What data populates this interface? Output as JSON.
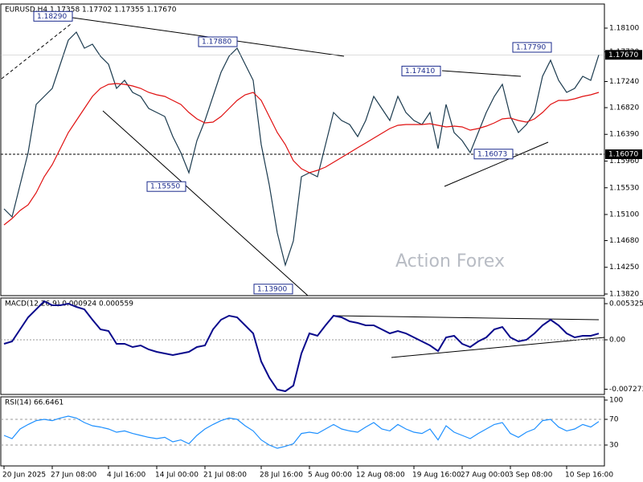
{
  "chart_data": [
    {
      "type": "line",
      "title": "EURUSD,H4  1.17358 1.17702 1.17355 1.17670",
      "categories": [
        "20 Jun 2025",
        null,
        null,
        null,
        null,
        null,
        "27 Jun 08:00",
        null,
        null,
        null,
        null,
        null,
        null,
        "4 Jul 16:00",
        null,
        null,
        null,
        null,
        null,
        "14 Jul 00:00",
        null,
        null,
        null,
        null,
        null,
        "21 Jul 08:00",
        null,
        null,
        null,
        null,
        null,
        null,
        "28 Jul 16:00",
        null,
        null,
        null,
        null,
        null,
        "5 Aug 00:00",
        null,
        null,
        null,
        null,
        null,
        "12 Aug 08:00",
        null,
        null,
        null,
        null,
        null,
        null,
        "19 Aug 16:00",
        null,
        null,
        null,
        null,
        null,
        "27 Aug 00:00",
        null,
        null,
        null,
        null,
        null,
        "3 Sep 08:00",
        null,
        null,
        null,
        null,
        null,
        null,
        "10 Sep 16:00",
        null,
        null,
        null,
        null
      ],
      "series": [
        {
          "color": "#1c3b4f",
          "values": [
            1.15191,
            1.15061,
            1.15579,
            1.16096,
            1.16872,
            1.17001,
            1.1713,
            1.17518,
            1.17906,
            1.18035,
            1.17777,
            1.17841,
            1.17648,
            1.17518,
            1.1713,
            1.1726,
            1.17066,
            1.17001,
            1.16807,
            1.16742,
            1.16678,
            1.16355,
            1.16096,
            1.15773,
            1.1629,
            1.16613,
            1.17001,
            1.17389,
            1.17648,
            1.17777,
            1.17518,
            1.1726,
            1.16225,
            1.15579,
            1.14803,
            1.14286,
            1.14674,
            1.15708,
            1.15773,
            1.15708,
            1.16225,
            1.16742,
            1.16613,
            1.16548,
            1.16355,
            1.16613,
            1.17001,
            1.16807,
            1.16613,
            1.17001,
            1.16742,
            1.16613,
            1.16548,
            1.16742,
            1.16161,
            1.16872,
            1.16419,
            1.1629,
            1.16096,
            1.16419,
            1.16742,
            1.17001,
            1.17195,
            1.16678,
            1.16419,
            1.16548,
            1.16742,
            1.17324,
            1.17583,
            1.1726,
            1.17066,
            1.1713,
            1.17324,
            1.1726,
            1.1767
          ]
        },
        {
          "color": "#e01010",
          "values": [
            1.14932,
            1.15036,
            1.15165,
            1.15255,
            1.15449,
            1.15708,
            1.15902,
            1.16161,
            1.16419,
            1.16613,
            1.16807,
            1.17001,
            1.1713,
            1.17195,
            1.17208,
            1.17195,
            1.17169,
            1.1713,
            1.17066,
            1.17027,
            1.17001,
            1.16936,
            1.16872,
            1.16742,
            1.16639,
            1.16574,
            1.16587,
            1.16678,
            1.16807,
            1.16936,
            1.17027,
            1.17066,
            1.16936,
            1.16678,
            1.16419,
            1.16225,
            1.15967,
            1.15837,
            1.15773,
            1.15811,
            1.15863,
            1.15941,
            1.16018,
            1.16096,
            1.16174,
            1.16251,
            1.16329,
            1.16406,
            1.16484,
            1.16536,
            1.16548,
            1.16548,
            1.16548,
            1.16561,
            1.16536,
            1.1651,
            1.16523,
            1.1651,
            1.16458,
            1.16484,
            1.16523,
            1.16574,
            1.16639,
            1.16652,
            1.16613,
            1.16587,
            1.16639,
            1.16742,
            1.16872,
            1.16936,
            1.16936,
            1.16962,
            1.17001,
            1.17027,
            1.17066
          ]
        }
      ],
      "ylim": [
        1.13794,
        1.18488
      ],
      "yticks": [
        {
          "value": 1.181,
          "label": "1.18100"
        },
        {
          "value": 1.1772,
          "label": "1.17720"
        },
        {
          "value": 1.1724,
          "label": "1.17240"
        },
        {
          "value": 1.1682,
          "label": "1.16820"
        },
        {
          "value": 1.1639,
          "label": "1.16390"
        },
        {
          "value": 1.1596,
          "label": "1.15960"
        },
        {
          "value": 1.1553,
          "label": "1.15530"
        },
        {
          "value": 1.151,
          "label": "1.15100"
        },
        {
          "value": 1.1468,
          "label": "1.14680"
        },
        {
          "value": 1.1425,
          "label": "1.14250"
        },
        {
          "value": 1.1382,
          "label": "1.13820"
        }
      ],
      "annotations": [
        {
          "value": 1.1829,
          "label": "1.18290"
        },
        {
          "value": 1.1788,
          "label": "1.17880"
        },
        {
          "value": 1.1741,
          "label": "1.17410"
        },
        {
          "value": 1.1779,
          "label": "1.17790"
        },
        {
          "value": 1.16073,
          "label": "1.16073"
        },
        {
          "value": 1.1555,
          "label": "1.15550"
        },
        {
          "value": 1.139,
          "label": "1.13900"
        }
      ],
      "last_price": {
        "value": 1.1767,
        "label": "1.17670"
      },
      "hline": {
        "value": 1.1607,
        "label": "1.16070"
      },
      "watermark": "Action Forex"
    },
    {
      "type": "line",
      "title": "MACD(12,26,9) 0.000924 0.000559",
      "series": [
        {
          "color": "#0a0a8c",
          "values": [
            -0.00059,
            -0.00024,
            0.00154,
            0.00331,
            0.00449,
            0.00568,
            0.00509,
            0.00509,
            0.00532,
            0.00485,
            0.00449,
            0.00296,
            0.00154,
            0.0013,
            -0.00059,
            -0.00059,
            -0.00106,
            -0.00083,
            -0.00142,
            -0.00177,
            -0.00201,
            -0.00225,
            -0.00201,
            -0.00177,
            -0.00106,
            -0.00083,
            0.00154,
            0.00296,
            0.00355,
            0.00331,
            0.00213,
            0.00095,
            -0.00319,
            -0.00556,
            -0.00733,
            -0.00757,
            -0.00674,
            -0.00201,
            0.00095,
            0.00059,
            0.00213,
            0.00355,
            0.00331,
            0.00272,
            0.00248,
            0.00213,
            0.00213,
            0.00154,
            0.00095,
            0.0013,
            0.00095,
            0.00035,
            -0.00024,
            -0.00083,
            -0.00166,
            0.00035,
            0.00059,
            -0.00059,
            -0.00106,
            -0.00024,
            0.00035,
            0.00154,
            0.00189,
            0.00035,
            -0.00024,
            0,
            0.00095,
            0.00213,
            0.00296,
            0.00213,
            0.00095,
            0.00035,
            0.00059,
            0.00059,
            0.000924
          ]
        }
      ],
      "ylim": [
        -0.008046,
        0.006153
      ],
      "yticks": [
        0.005325,
        {
          "value": 0,
          "label": "0.00"
        },
        -0.007273
      ]
    },
    {
      "type": "line",
      "title": "RSI(14) 66.6461",
      "series": [
        {
          "color": "#1e90ff",
          "values": [
            45,
            40,
            55,
            62,
            68,
            70,
            68,
            72,
            75,
            72,
            65,
            60,
            58,
            55,
            50,
            52,
            48,
            45,
            42,
            40,
            42,
            35,
            38,
            32,
            45,
            55,
            62,
            68,
            72,
            70,
            60,
            52,
            38,
            30,
            25,
            28,
            32,
            48,
            50,
            48,
            55,
            62,
            55,
            52,
            50,
            58,
            65,
            55,
            52,
            62,
            55,
            50,
            48,
            55,
            38,
            60,
            50,
            45,
            40,
            48,
            55,
            62,
            65,
            48,
            42,
            50,
            55,
            68,
            70,
            58,
            52,
            55,
            62,
            58,
            66.6461
          ]
        }
      ],
      "ylim": [
        -2.5,
        105
      ],
      "yticks": [
        100,
        70,
        30
      ],
      "levels": [
        70,
        30
      ]
    }
  ]
}
